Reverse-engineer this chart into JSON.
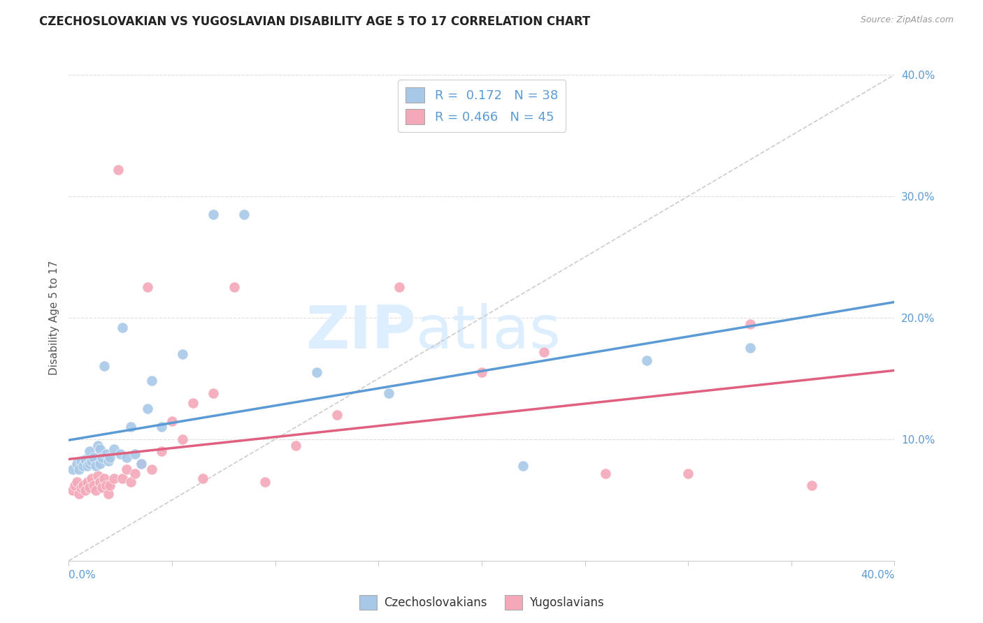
{
  "title": "CZECHOSLOVAKIAN VS YUGOSLAVIAN DISABILITY AGE 5 TO 17 CORRELATION CHART",
  "source": "Source: ZipAtlas.com",
  "ylabel": "Disability Age 5 to 17",
  "legend_labels": [
    "Czechoslovakians",
    "Yugoslavians"
  ],
  "R_czech": 0.172,
  "N_czech": 38,
  "R_yugo": 0.466,
  "N_yugo": 45,
  "color_czech": "#a8c8e8",
  "color_yugo": "#f4a8b8",
  "trendline_czech_color": "#5b9bd5",
  "trendline_yugo_color": "#e06080",
  "trendline_diag_color": "#cccccc",
  "xlim": [
    0.0,
    0.4
  ],
  "ylim": [
    0.0,
    0.4
  ],
  "yticks": [
    0.1,
    0.2,
    0.3,
    0.4
  ],
  "ytick_labels": [
    "10.0%",
    "20.0%",
    "30.0%",
    "40.0%"
  ],
  "czech_x": [
    0.002,
    0.004,
    0.005,
    0.006,
    0.007,
    0.008,
    0.009,
    0.01,
    0.01,
    0.011,
    0.012,
    0.013,
    0.014,
    0.015,
    0.015,
    0.016,
    0.017,
    0.018,
    0.019,
    0.02,
    0.022,
    0.025,
    0.026,
    0.028,
    0.03,
    0.032,
    0.035,
    0.038,
    0.04,
    0.045,
    0.055,
    0.07,
    0.085,
    0.12,
    0.155,
    0.22,
    0.28,
    0.33
  ],
  "czech_y": [
    0.075,
    0.08,
    0.075,
    0.082,
    0.078,
    0.083,
    0.078,
    0.08,
    0.09,
    0.082,
    0.085,
    0.078,
    0.095,
    0.08,
    0.092,
    0.085,
    0.16,
    0.088,
    0.082,
    0.085,
    0.092,
    0.088,
    0.192,
    0.085,
    0.11,
    0.088,
    0.08,
    0.125,
    0.148,
    0.11,
    0.17,
    0.285,
    0.285,
    0.155,
    0.138,
    0.078,
    0.165,
    0.175
  ],
  "yugo_x": [
    0.002,
    0.003,
    0.004,
    0.005,
    0.006,
    0.007,
    0.008,
    0.009,
    0.01,
    0.011,
    0.012,
    0.013,
    0.014,
    0.015,
    0.016,
    0.017,
    0.018,
    0.019,
    0.02,
    0.022,
    0.024,
    0.026,
    0.028,
    0.03,
    0.032,
    0.035,
    0.038,
    0.04,
    0.045,
    0.05,
    0.055,
    0.06,
    0.065,
    0.07,
    0.08,
    0.095,
    0.11,
    0.13,
    0.16,
    0.2,
    0.23,
    0.26,
    0.3,
    0.33,
    0.36
  ],
  "yugo_y": [
    0.058,
    0.062,
    0.065,
    0.055,
    0.06,
    0.062,
    0.058,
    0.065,
    0.06,
    0.068,
    0.062,
    0.058,
    0.07,
    0.065,
    0.06,
    0.068,
    0.062,
    0.055,
    0.062,
    0.068,
    0.322,
    0.068,
    0.075,
    0.065,
    0.072,
    0.08,
    0.225,
    0.075,
    0.09,
    0.115,
    0.1,
    0.13,
    0.068,
    0.138,
    0.225,
    0.065,
    0.095,
    0.12,
    0.225,
    0.155,
    0.172,
    0.072,
    0.072,
    0.195,
    0.062
  ],
  "background_color": "#ffffff",
  "legend_text_color": "#5b9bd5",
  "label_color": "#5b9bd5"
}
